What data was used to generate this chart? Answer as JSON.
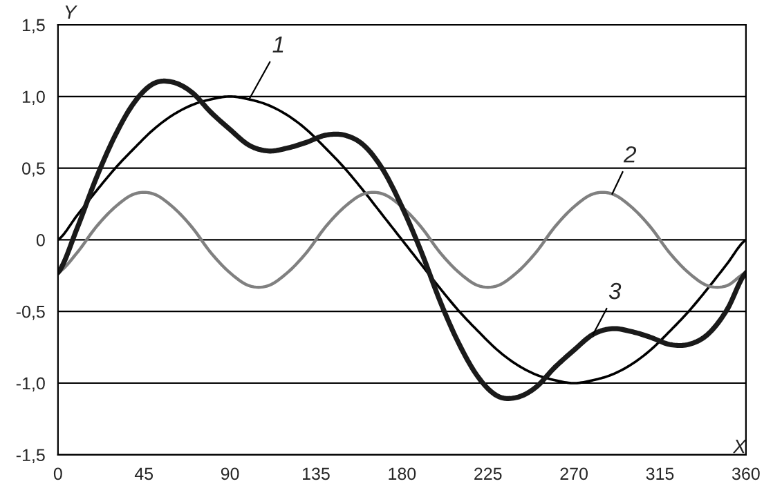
{
  "chart_data": {
    "type": "line",
    "xlabel": "X",
    "ylabel": "Y",
    "x": [
      0,
      10,
      20,
      30,
      40,
      50,
      60,
      70,
      80,
      90,
      100,
      110,
      120,
      130,
      140,
      150,
      160,
      170,
      180,
      190,
      200,
      210,
      220,
      230,
      240,
      250,
      260,
      270,
      280,
      290,
      300,
      310,
      320,
      330,
      340,
      350,
      360
    ],
    "series": [
      {
        "color": "#000000",
        "values": [
          0,
          0.17,
          0.34,
          0.5,
          0.64,
          0.77,
          0.87,
          0.94,
          0.98,
          1,
          0.98,
          0.94,
          0.87,
          0.77,
          0.64,
          0.5,
          0.34,
          0.17,
          0,
          -0.17,
          -0.34,
          -0.5,
          -0.64,
          -0.77,
          -0.87,
          -0.94,
          -0.98,
          -1,
          -0.98,
          -0.94,
          -0.87,
          -0.77,
          -0.64,
          -0.5,
          -0.34,
          -0.17,
          0
        ]
      },
      {
        "color": "#808080",
        "values": [
          -0.23,
          -0.09,
          0.09,
          0.23,
          0.32,
          0.32,
          0.23,
          0.09,
          -0.09,
          -0.23,
          -0.32,
          -0.32,
          -0.23,
          -0.09,
          0.09,
          0.23,
          0.32,
          0.32,
          0.23,
          0.09,
          -0.09,
          -0.23,
          -0.32,
          -0.32,
          -0.23,
          -0.09,
          0.09,
          0.23,
          0.32,
          0.32,
          0.23,
          0.09,
          -0.09,
          -0.23,
          -0.32,
          -0.32,
          -0.23
        ]
      },
      {
        "color": "#1a1a1a",
        "values": [
          -0.23,
          0.08,
          0.43,
          0.73,
          0.96,
          1.09,
          1.1,
          1.03,
          0.89,
          0.77,
          0.66,
          0.62,
          0.64,
          0.68,
          0.73,
          0.73,
          0.66,
          0.49,
          0.23,
          -0.08,
          -0.43,
          -0.73,
          -0.96,
          -1.09,
          -1.1,
          -1.03,
          -0.89,
          -0.77,
          -0.66,
          -0.62,
          -0.64,
          -0.68,
          -0.73,
          -0.73,
          -0.66,
          -0.49,
          -0.23
        ]
      }
    ],
    "annotations": [
      {
        "text": "1",
        "x": 100,
        "y": 0.98
      },
      {
        "text": "2",
        "x": 290,
        "y": 0.32
      },
      {
        "text": "3",
        "x": 280,
        "y": -0.66
      }
    ],
    "xlim": [
      0,
      360
    ],
    "xticks": [
      0,
      45,
      90,
      135,
      180,
      225,
      270,
      315,
      360
    ],
    "ylim": [
      -1.5,
      1.5
    ],
    "yticks": [
      {
        "value": -1.5,
        "label": "-1,5"
      },
      {
        "value": -1.0,
        "label": "-1,0"
      },
      {
        "value": -0.5,
        "label": "-0,5"
      },
      0,
      {
        "value": 0.5,
        "label": "0,5"
      },
      {
        "value": 1.0,
        "label": "1,0"
      },
      {
        "value": 1.5,
        "label": "1,5"
      }
    ],
    "grid": "y",
    "marker": "none",
    "line_style": "solid",
    "legend": false
  }
}
